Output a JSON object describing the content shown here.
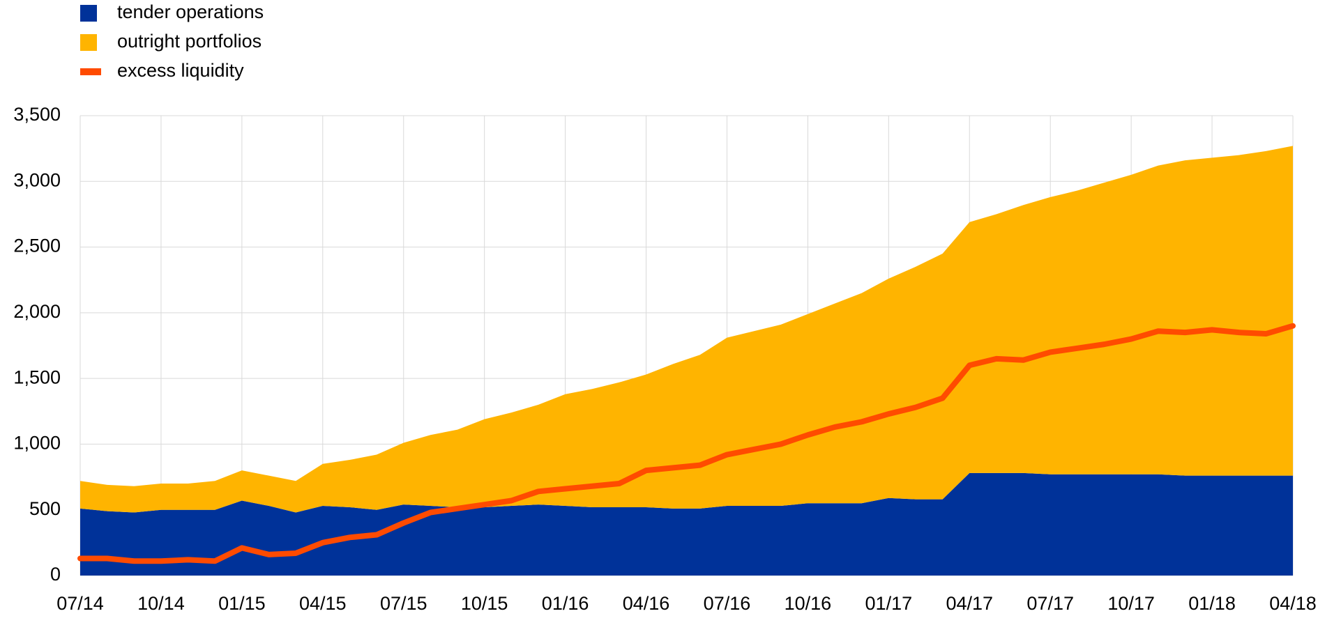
{
  "chart_data": {
    "type": "stacked-area-line",
    "categories": [
      "07/14",
      null,
      null,
      "10/14",
      null,
      null,
      "01/15",
      null,
      null,
      "04/15",
      null,
      null,
      "07/15",
      null,
      null,
      "10/15",
      null,
      null,
      "01/16",
      null,
      null,
      "04/16",
      null,
      null,
      "07/16",
      null,
      null,
      "10/16",
      null,
      null,
      "01/17",
      null,
      null,
      "04/17",
      null,
      null,
      "07/17",
      null,
      null,
      "10/17",
      null,
      null,
      "01/18",
      null,
      null,
      "04/18"
    ],
    "series": [
      {
        "name": "tender operations",
        "color": "#003299",
        "kind": "area",
        "values": [
          510,
          490,
          480,
          500,
          500,
          500,
          570,
          530,
          480,
          530,
          520,
          500,
          540,
          530,
          520,
          520,
          530,
          540,
          530,
          520,
          520,
          520,
          510,
          510,
          530,
          530,
          530,
          550,
          550,
          550,
          590,
          580,
          580,
          780,
          780,
          780,
          770,
          770,
          770,
          770,
          770,
          760,
          760,
          760,
          760,
          760
        ]
      },
      {
        "name": "outright portfolios",
        "color": "#ffb400",
        "kind": "area",
        "values": [
          210,
          200,
          200,
          200,
          200,
          220,
          230,
          230,
          240,
          320,
          360,
          420,
          470,
          540,
          590,
          670,
          710,
          760,
          850,
          900,
          950,
          1010,
          1100,
          1170,
          1280,
          1330,
          1380,
          1440,
          1520,
          1600,
          1670,
          1770,
          1870,
          1910,
          1970,
          2040,
          2110,
          2160,
          2220,
          2280,
          2350,
          2400,
          2420,
          2440,
          2470,
          2510
        ]
      },
      {
        "name": "excess liquidity",
        "color": "#ff4b00",
        "kind": "line",
        "values": [
          130,
          130,
          110,
          110,
          120,
          110,
          210,
          160,
          170,
          250,
          290,
          310,
          400,
          480,
          510,
          540,
          570,
          640,
          660,
          680,
          700,
          800,
          820,
          840,
          920,
          960,
          1000,
          1070,
          1130,
          1170,
          1230,
          1280,
          1350,
          1600,
          1650,
          1640,
          1700,
          1730,
          1760,
          1800,
          1860,
          1850,
          1870,
          1850,
          1840,
          1900
        ]
      }
    ],
    "ylim": [
      0,
      3500
    ],
    "yticks": [
      0,
      500,
      {
        "value": 1000,
        "label": "1,000"
      },
      {
        "value": 1500,
        "label": "1,500"
      },
      {
        "value": 2000,
        "label": "2,000"
      },
      {
        "value": 2500,
        "label": "2,500"
      },
      {
        "value": 3000,
        "label": "3,000"
      },
      {
        "value": 3500,
        "label": "3,500"
      }
    ],
    "grid": true
  }
}
